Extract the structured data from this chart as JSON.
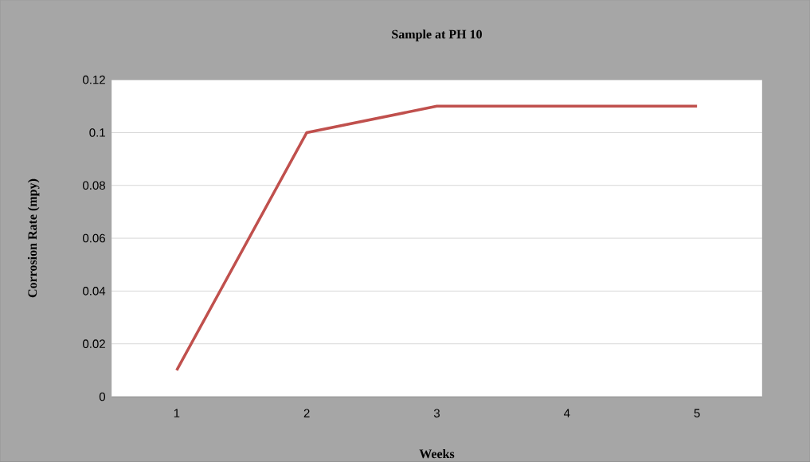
{
  "chart_data": {
    "type": "line",
    "title": "Sample at PH 10",
    "xlabel": "Weeks",
    "ylabel": "Corrosion Rate (mpy)",
    "categories": [
      "1",
      "2",
      "3",
      "4",
      "5"
    ],
    "values": [
      0.01,
      0.1,
      0.11,
      0.11,
      0.11
    ],
    "color": "#c0504d",
    "ylim": [
      0,
      0.12
    ],
    "yticks": [
      0,
      0.02,
      0.04,
      0.06,
      0.08,
      0.1,
      0.12
    ],
    "grid": "y"
  }
}
